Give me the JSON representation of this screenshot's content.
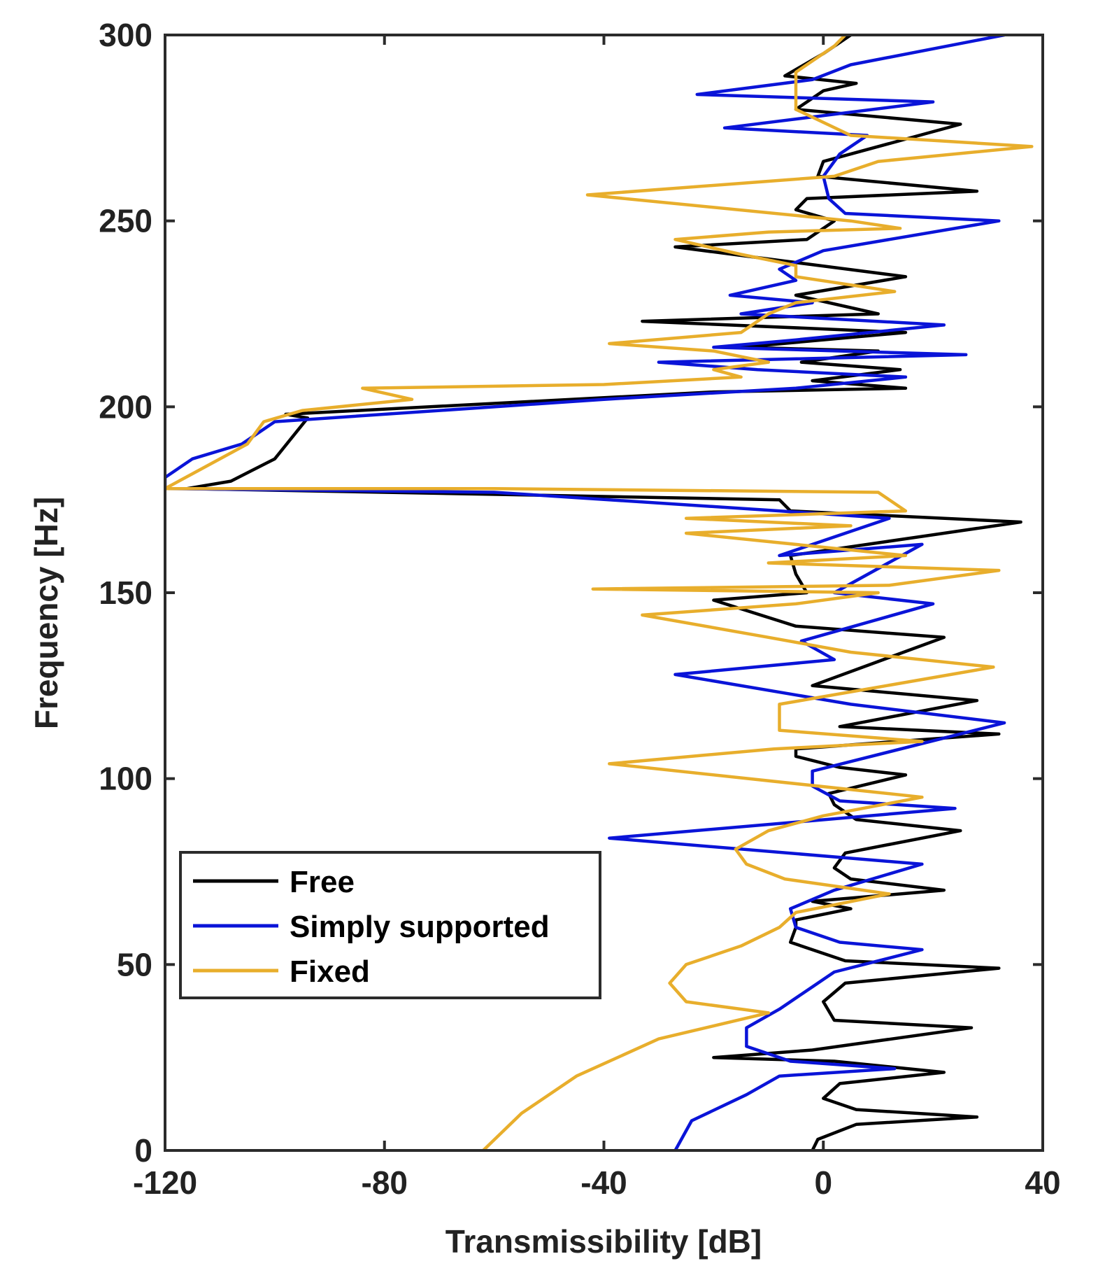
{
  "chart_data": {
    "type": "line",
    "orientation": "transmissibility-vs-frequency",
    "xlabel": "Transmissibility [dB]",
    "ylabel": "Frequency [Hz]",
    "xlim": [
      -120,
      40
    ],
    "ylim": [
      0,
      300
    ],
    "xticks": [
      -120,
      -80,
      -40,
      0,
      40
    ],
    "yticks": [
      0,
      50,
      100,
      150,
      200,
      250,
      300
    ],
    "xtick_labels": [
      "-120",
      "-80",
      "-40",
      "0",
      "40"
    ],
    "ytick_labels": [
      "0",
      "50",
      "100",
      "150",
      "200",
      "250",
      "300"
    ],
    "legend_position": "lower-left",
    "series": [
      {
        "name": "Free",
        "color": "#000000",
        "points": [
          [
            -2,
            0
          ],
          [
            -1,
            3
          ],
          [
            6,
            7
          ],
          [
            28,
            9
          ],
          [
            6,
            11
          ],
          [
            0,
            14
          ],
          [
            3,
            18
          ],
          [
            22,
            21
          ],
          [
            2,
            24
          ],
          [
            -20,
            25
          ],
          [
            -2,
            27
          ],
          [
            27,
            33
          ],
          [
            2,
            35
          ],
          [
            0,
            40
          ],
          [
            4,
            45
          ],
          [
            32,
            49
          ],
          [
            4,
            51
          ],
          [
            -6,
            56
          ],
          [
            -5,
            60
          ],
          [
            -5,
            62
          ],
          [
            5,
            65
          ],
          [
            -2,
            67
          ],
          [
            22,
            70
          ],
          [
            5,
            73
          ],
          [
            2,
            76
          ],
          [
            4,
            80
          ],
          [
            25,
            86
          ],
          [
            6,
            89
          ],
          [
            2,
            93
          ],
          [
            1,
            96
          ],
          [
            15,
            101
          ],
          [
            3,
            103
          ],
          [
            -5,
            106
          ],
          [
            -5,
            108
          ],
          [
            32,
            112
          ],
          [
            3,
            114
          ],
          [
            28,
            121
          ],
          [
            -2,
            125
          ],
          [
            22,
            138
          ],
          [
            -5,
            141
          ],
          [
            -20,
            148
          ],
          [
            -3,
            150
          ],
          [
            -5,
            155
          ],
          [
            -6,
            160
          ],
          [
            36,
            169
          ],
          [
            -6,
            172
          ],
          [
            -8,
            175
          ],
          [
            -116,
            178
          ],
          [
            -108,
            180
          ],
          [
            -100,
            186
          ],
          [
            -94,
            197
          ],
          [
            -98,
            198
          ],
          [
            -20,
            204
          ],
          [
            15,
            205
          ],
          [
            -2,
            207
          ],
          [
            14,
            210
          ],
          [
            -4,
            212
          ],
          [
            10,
            215
          ],
          [
            -15,
            216
          ],
          [
            15,
            220
          ],
          [
            -33,
            223
          ],
          [
            10,
            225
          ],
          [
            -5,
            230
          ],
          [
            15,
            235
          ],
          [
            -27,
            243
          ],
          [
            -3,
            245
          ],
          [
            2,
            250
          ],
          [
            -5,
            253
          ],
          [
            -3,
            256
          ],
          [
            28,
            258
          ],
          [
            -1,
            262
          ],
          [
            0,
            266
          ],
          [
            25,
            276
          ],
          [
            -5,
            280
          ],
          [
            0,
            285
          ],
          [
            6,
            287
          ],
          [
            -7,
            289
          ],
          [
            0,
            295
          ],
          [
            5,
            300
          ]
        ]
      },
      {
        "name": "Simply supported",
        "color": "#0a14d8",
        "points": [
          [
            -27,
            0
          ],
          [
            -24,
            8
          ],
          [
            -14,
            15
          ],
          [
            -8,
            20
          ],
          [
            13,
            22
          ],
          [
            -6,
            24
          ],
          [
            -14,
            28
          ],
          [
            -14,
            33
          ],
          [
            -8,
            38
          ],
          [
            -2,
            44
          ],
          [
            2,
            48
          ],
          [
            18,
            54
          ],
          [
            3,
            56
          ],
          [
            -5,
            60
          ],
          [
            -6,
            65
          ],
          [
            2,
            70
          ],
          [
            18,
            77
          ],
          [
            -39,
            84
          ],
          [
            24,
            92
          ],
          [
            3,
            94
          ],
          [
            -2,
            98
          ],
          [
            -2,
            102
          ],
          [
            33,
            115
          ],
          [
            5,
            120
          ],
          [
            -27,
            128
          ],
          [
            2,
            132
          ],
          [
            -4,
            137
          ],
          [
            20,
            147
          ],
          [
            2,
            150
          ],
          [
            18,
            163
          ],
          [
            -8,
            160
          ],
          [
            12,
            170
          ],
          [
            -8,
            172
          ],
          [
            -60,
            177
          ],
          [
            -120,
            178
          ],
          [
            -120,
            181
          ],
          [
            -115,
            186
          ],
          [
            -106,
            190
          ],
          [
            -100,
            196
          ],
          [
            -40,
            202
          ],
          [
            -5,
            205
          ],
          [
            15,
            208
          ],
          [
            -12,
            210
          ],
          [
            -30,
            212
          ],
          [
            26,
            214
          ],
          [
            -20,
            216
          ],
          [
            -5,
            218
          ],
          [
            22,
            222
          ],
          [
            -15,
            225
          ],
          [
            -2,
            228
          ],
          [
            -17,
            230
          ],
          [
            -5,
            234
          ],
          [
            -8,
            237
          ],
          [
            0,
            242
          ],
          [
            32,
            250
          ],
          [
            4,
            252
          ],
          [
            1,
            256
          ],
          [
            0,
            262
          ],
          [
            3,
            268
          ],
          [
            8,
            273
          ],
          [
            -18,
            275
          ],
          [
            20,
            282
          ],
          [
            -23,
            284
          ],
          [
            -2,
            288
          ],
          [
            5,
            292
          ],
          [
            33,
            300
          ]
        ]
      },
      {
        "name": "Fixed",
        "color": "#e8ae2c",
        "points": [
          [
            -62,
            0
          ],
          [
            -55,
            10
          ],
          [
            -45,
            20
          ],
          [
            -30,
            30
          ],
          [
            -10,
            37
          ],
          [
            -25,
            40
          ],
          [
            -28,
            45
          ],
          [
            -25,
            50
          ],
          [
            -15,
            55
          ],
          [
            -8,
            60
          ],
          [
            -5,
            64
          ],
          [
            12,
            69
          ],
          [
            -7,
            73
          ],
          [
            -14,
            77
          ],
          [
            -16,
            81
          ],
          [
            -10,
            86
          ],
          [
            0,
            90
          ],
          [
            18,
            95
          ],
          [
            -39,
            104
          ],
          [
            -9,
            108
          ],
          [
            18,
            110
          ],
          [
            -8,
            113
          ],
          [
            -8,
            120
          ],
          [
            31,
            130
          ],
          [
            5,
            134
          ],
          [
            -10,
            138
          ],
          [
            -33,
            144
          ],
          [
            -5,
            147
          ],
          [
            10,
            150
          ],
          [
            -42,
            151
          ],
          [
            12,
            152
          ],
          [
            32,
            156
          ],
          [
            -10,
            158
          ],
          [
            15,
            160
          ],
          [
            -25,
            166
          ],
          [
            5,
            168
          ],
          [
            -25,
            170
          ],
          [
            15,
            172
          ],
          [
            10,
            177
          ],
          [
            -60,
            178
          ],
          [
            -120,
            178
          ],
          [
            -115,
            182
          ],
          [
            -105,
            190
          ],
          [
            -102,
            196
          ],
          [
            -95,
            199
          ],
          [
            -75,
            202
          ],
          [
            -84,
            205
          ],
          [
            -40,
            206
          ],
          [
            -15,
            208
          ],
          [
            -20,
            210
          ],
          [
            -10,
            212
          ],
          [
            -20,
            215
          ],
          [
            -39,
            217
          ],
          [
            -15,
            220
          ],
          [
            -10,
            225
          ],
          [
            -5,
            228
          ],
          [
            13,
            231
          ],
          [
            -5,
            235
          ],
          [
            -5,
            238
          ],
          [
            -15,
            241
          ],
          [
            -27,
            245
          ],
          [
            -10,
            247
          ],
          [
            14,
            248
          ],
          [
            5,
            250
          ],
          [
            -43,
            257
          ],
          [
            2,
            262
          ],
          [
            10,
            266
          ],
          [
            38,
            270
          ],
          [
            5,
            273
          ],
          [
            -5,
            280
          ],
          [
            -5,
            290
          ],
          [
            2,
            297
          ],
          [
            4,
            300
          ]
        ]
      }
    ]
  }
}
